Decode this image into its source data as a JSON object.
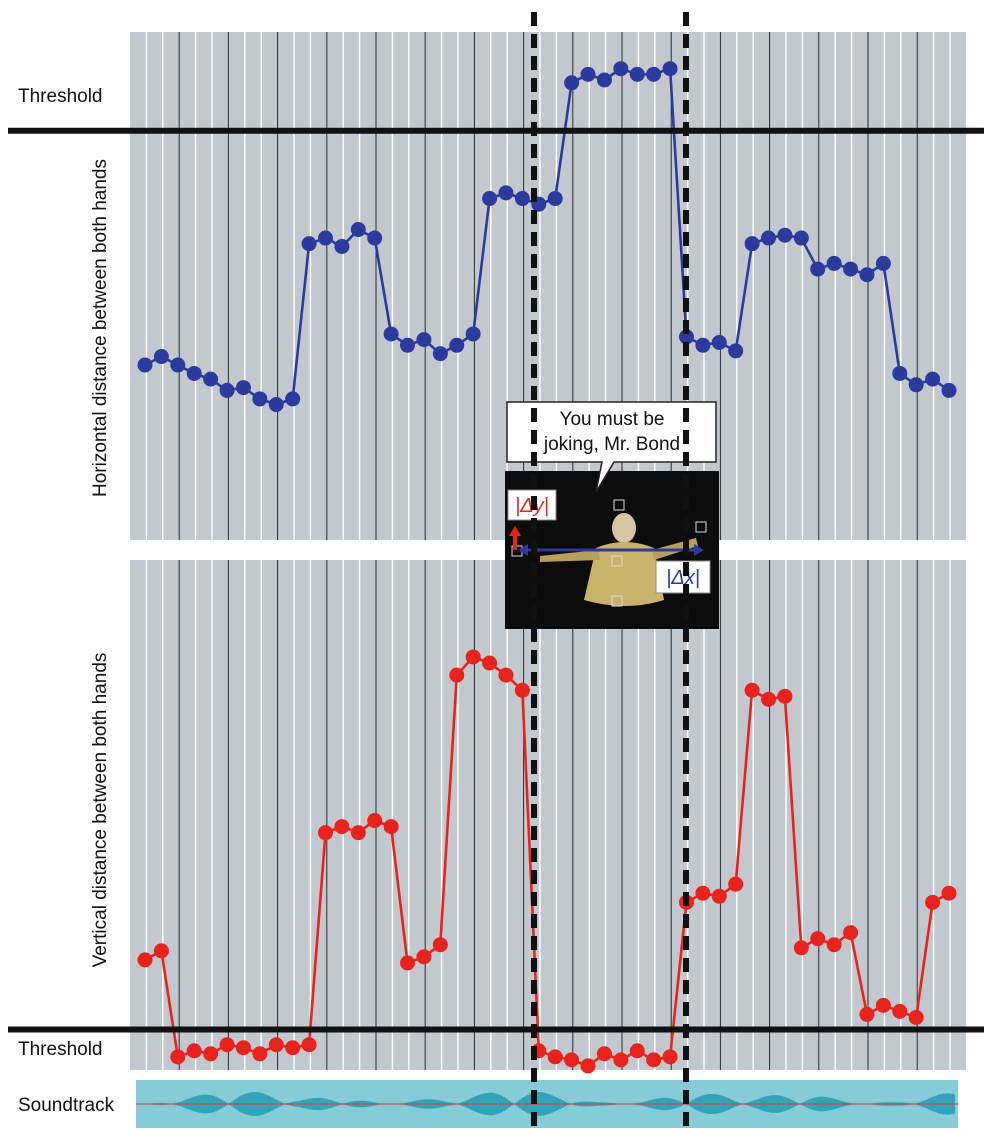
{
  "chart_data": [
    {
      "type": "line",
      "ylabel": "Horizontal distance between both hands",
      "threshold_label": "Threshold",
      "series": [
        {
          "color": "#2b3a9c",
          "values": [
            6.2,
            6.5,
            6.2,
            5.9,
            5.7,
            5.3,
            5.4,
            5.0,
            4.8,
            5.0,
            10.5,
            10.7,
            10.4,
            11.0,
            10.7,
            7.3,
            6.9,
            7.1,
            6.6,
            6.9,
            7.3,
            12.1,
            12.3,
            12.1,
            11.9,
            12.1,
            16.2,
            16.5,
            16.3,
            16.7,
            16.5,
            16.5,
            16.7,
            7.2,
            6.9,
            7.0,
            6.7,
            10.5,
            10.7,
            10.8,
            10.7,
            9.6,
            9.8,
            9.6,
            9.4,
            9.8,
            5.9,
            5.5,
            5.7,
            5.3
          ]
        }
      ],
      "threshold": 14.5,
      "ylim": [
        0,
        18
      ],
      "grid": true
    },
    {
      "type": "line",
      "ylabel": "Vertical distance between both hands",
      "threshold_label": "Threshold",
      "series": [
        {
          "color": "#e8231e",
          "values": [
            3.8,
            4.1,
            0.6,
            0.8,
            0.7,
            1.0,
            0.9,
            0.7,
            1.0,
            0.9,
            1.0,
            8.0,
            8.2,
            8.0,
            8.4,
            8.2,
            3.7,
            3.9,
            4.3,
            13.2,
            13.8,
            13.6,
            13.2,
            12.7,
            0.8,
            0.6,
            0.5,
            0.3,
            0.7,
            0.5,
            0.8,
            0.5,
            0.6,
            5.7,
            6.0,
            5.9,
            6.3,
            12.7,
            12.4,
            12.5,
            4.2,
            4.5,
            4.3,
            4.7,
            2.0,
            2.3,
            2.1,
            1.9,
            5.7,
            6.0
          ]
        }
      ],
      "threshold": 1.5,
      "ylim": [
        0,
        17
      ],
      "grid": true
    }
  ],
  "soundtrack_label": "Soundtrack",
  "bubble_text": [
    "You must be",
    "joking, Mr. Bond"
  ],
  "delta_y_label": "|Δy|",
  "delta_x_label": "|Δx|",
  "colors": {
    "panel_bg": "#c3c8ce",
    "grid": "#ffffff",
    "dark_grid": "#2a2a2a",
    "threshold": "#111111",
    "soundtrack_bg": "#86ccd8",
    "waveform": "#1e9ab0"
  }
}
